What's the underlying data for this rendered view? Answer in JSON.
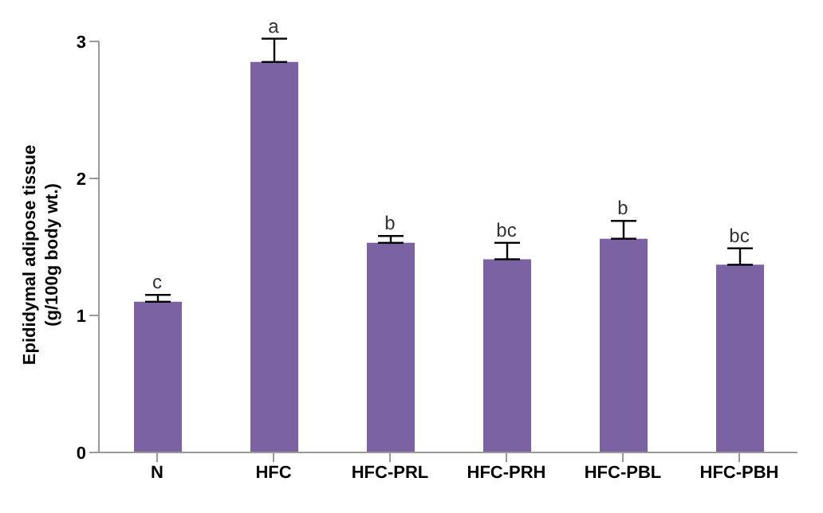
{
  "chart_data": {
    "type": "bar",
    "ylabel": "Epididymal adipose tissue (g/100g body wt.)",
    "categories": [
      "N",
      "HFC",
      "HFC-PRL",
      "HFC-PRH",
      "HFC-PBL",
      "HFC-PBH"
    ],
    "values": [
      1.1,
      2.85,
      1.53,
      1.41,
      1.56,
      1.37
    ],
    "errors": [
      0.05,
      0.17,
      0.05,
      0.12,
      0.13,
      0.12
    ],
    "color": "#7b62a2",
    "ylim": [
      0,
      3
    ],
    "yticks": [
      0,
      1,
      2,
      3
    ],
    "grid": false,
    "annotations": [
      {
        "text": "c",
        "x": "N",
        "y": 1.15
      },
      {
        "text": "a",
        "x": "HFC",
        "y": 3.02
      },
      {
        "text": "b",
        "x": "HFC-PRL",
        "y": 1.58
      },
      {
        "text": "bc",
        "x": "HFC-PRH",
        "y": 1.53
      },
      {
        "text": "b",
        "x": "HFC-PBL",
        "y": 1.69
      },
      {
        "text": "bc",
        "x": "HFC-PBH",
        "y": 1.49
      }
    ]
  }
}
